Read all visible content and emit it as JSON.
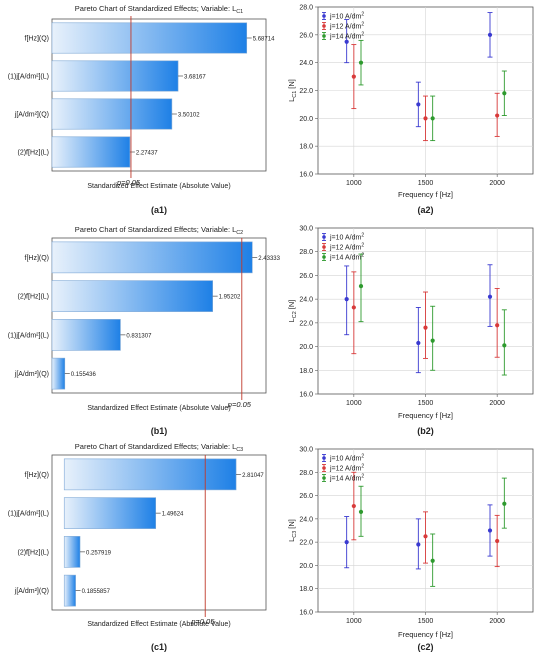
{
  "chart_data": [
    {
      "panel_id": "a1",
      "type": "bar",
      "orientation": "horizontal",
      "title": "Pareto Chart of Standardized Effects; Variable: L",
      "title_sub": "C1",
      "xlabel": "Standardized Effect Estimate (Absolute Value)",
      "categories": [
        "f[Hz](Q)",
        "(1)j[A/dm²](L)",
        "j[A/dm²](Q)",
        "(2)f[Hz](L)"
      ],
      "values": [
        5.68714,
        3.68167,
        3.50102,
        2.27437
      ],
      "value_labels": [
        "5.68714",
        "3.68167",
        "3.50102",
        "2.27437"
      ],
      "xlim": [
        0,
        6.25
      ],
      "reference_line": 2.306,
      "reference_label": "p=0.05",
      "caption": "(a1)"
    },
    {
      "panel_id": "b1",
      "type": "bar",
      "orientation": "horizontal",
      "title": "Pareto Chart of Standardized Effects; Variable: L",
      "title_sub": "C2",
      "xlabel": "Standardized Effect Estimate (Absolute Value)",
      "categories": [
        "f[Hz](Q)",
        "(2)f[Hz](L)",
        "(1)j[A/dm²](L)",
        "j[A/dm²](Q)"
      ],
      "values": [
        2.43333,
        1.95202,
        0.831307,
        0.155436
      ],
      "value_labels": [
        "2.43333",
        "1.95202",
        "0.831307",
        "0.155436"
      ],
      "xlim": [
        0,
        2.6
      ],
      "reference_line": 2.306,
      "reference_label": "p=0.05",
      "caption": "(b1)"
    },
    {
      "panel_id": "c1",
      "type": "bar",
      "orientation": "horizontal",
      "title": "Pareto Chart of Standardized Effects; Variable: L",
      "title_sub": "C3",
      "xlabel": "Standardized Effect Estimate (Absolute Value)",
      "categories": [
        "f[Hz](Q)",
        "(1)j[A/dm²](L)",
        "(2)f[Hz](L)",
        "j[A/dm²](Q)"
      ],
      "values": [
        2.81047,
        1.49624,
        0.257919,
        0.1855857
      ],
      "value_labels": [
        "2.81047",
        "1.49624",
        "0.257919",
        "0.1855857"
      ],
      "xlim": [
        -0.2,
        3.3
      ],
      "reference_line": 2.306,
      "reference_label": "p=0.05",
      "caption": "(c1)"
    },
    {
      "panel_id": "a2",
      "type": "scatter",
      "error_bars": true,
      "xlabel": "Frequency f [Hz]",
      "ylabel": "L",
      "ylabel_sub": "C1",
      "ylabel_unit": " [N]",
      "categories": [
        1000,
        1500,
        2000
      ],
      "xlim": [
        750,
        2250
      ],
      "ylim": [
        16,
        28
      ],
      "yticks": [
        16,
        18,
        20,
        22,
        24,
        26,
        28
      ],
      "grid": true,
      "legend_position": "top-left",
      "series": [
        {
          "name": "j=10 A/dm",
          "superscript": "2",
          "color": "#3a3ad0",
          "offset": -50,
          "values": [
            25.5,
            21.0,
            26.0
          ],
          "lower": [
            24.0,
            19.4,
            24.4
          ],
          "upper": [
            27.1,
            22.6,
            27.6
          ]
        },
        {
          "name": "j=12 A/dm",
          "superscript": "2",
          "color": "#d83a3a",
          "offset": 0,
          "values": [
            23.0,
            20.0,
            20.2
          ],
          "lower": [
            20.7,
            18.4,
            18.7
          ],
          "upper": [
            25.3,
            21.6,
            21.8
          ]
        },
        {
          "name": "j=14 A/dm",
          "superscript": "2",
          "color": "#2e9a2e",
          "offset": 50,
          "values": [
            24.0,
            20.0,
            21.8
          ],
          "lower": [
            22.4,
            18.4,
            20.2
          ],
          "upper": [
            25.6,
            21.6,
            23.4
          ]
        }
      ],
      "caption": "(a2)"
    },
    {
      "panel_id": "b2",
      "type": "scatter",
      "error_bars": true,
      "xlabel": "Frequency f [Hz]",
      "ylabel": "L",
      "ylabel_sub": "C2",
      "ylabel_unit": " [N]",
      "categories": [
        1000,
        1500,
        2000
      ],
      "xlim": [
        750,
        2250
      ],
      "ylim": [
        16,
        30
      ],
      "yticks": [
        16,
        18,
        20,
        22,
        24,
        26,
        28,
        30
      ],
      "grid": true,
      "legend_position": "top-left",
      "series": [
        {
          "name": "j=10 A/dm",
          "superscript": "2",
          "color": "#3a3ad0",
          "offset": -50,
          "values": [
            24.0,
            20.3,
            24.2
          ],
          "lower": [
            21.0,
            17.8,
            21.7
          ],
          "upper": [
            26.8,
            23.3,
            26.9
          ]
        },
        {
          "name": "j=12 A/dm",
          "superscript": "2",
          "color": "#d83a3a",
          "offset": 0,
          "values": [
            23.3,
            21.6,
            21.8
          ],
          "lower": [
            19.4,
            19.0,
            19.1
          ],
          "upper": [
            26.3,
            24.6,
            24.9
          ]
        },
        {
          "name": "j=14 A/dm",
          "superscript": "2",
          "color": "#2e9a2e",
          "offset": 50,
          "values": [
            25.1,
            20.5,
            20.1
          ],
          "lower": [
            22.1,
            18.0,
            17.6
          ],
          "upper": [
            27.8,
            23.4,
            23.1
          ]
        }
      ],
      "caption": "(b2)"
    },
    {
      "panel_id": "c2",
      "type": "scatter",
      "error_bars": true,
      "xlabel": "Frequency f [Hz]",
      "ylabel": "L",
      "ylabel_sub": "C3",
      "ylabel_unit": " [N]",
      "categories": [
        1000,
        1500,
        2000
      ],
      "xlim": [
        750,
        2250
      ],
      "ylim": [
        16,
        30
      ],
      "yticks": [
        16,
        18,
        20,
        22,
        24,
        26,
        28,
        30
      ],
      "grid": true,
      "legend_position": "top-left",
      "series": [
        {
          "name": "j=10 A/dm",
          "superscript": "2",
          "color": "#3a3ad0",
          "offset": -50,
          "values": [
            22.0,
            21.8,
            23.0
          ],
          "lower": [
            19.8,
            19.7,
            20.8
          ],
          "upper": [
            24.2,
            24.0,
            25.2
          ]
        },
        {
          "name": "j=12 A/dm",
          "superscript": "2",
          "color": "#d83a3a",
          "offset": 0,
          "values": [
            25.1,
            22.5,
            22.1
          ],
          "lower": [
            22.2,
            20.2,
            19.9
          ],
          "upper": [
            28.0,
            24.6,
            24.3
          ]
        },
        {
          "name": "j=14 A/dm",
          "superscript": "2",
          "color": "#2e9a2e",
          "offset": 50,
          "values": [
            24.6,
            20.4,
            25.3
          ],
          "lower": [
            22.5,
            18.2,
            23.2
          ],
          "upper": [
            26.8,
            22.7,
            27.5
          ]
        }
      ],
      "caption": "(c2)"
    }
  ]
}
